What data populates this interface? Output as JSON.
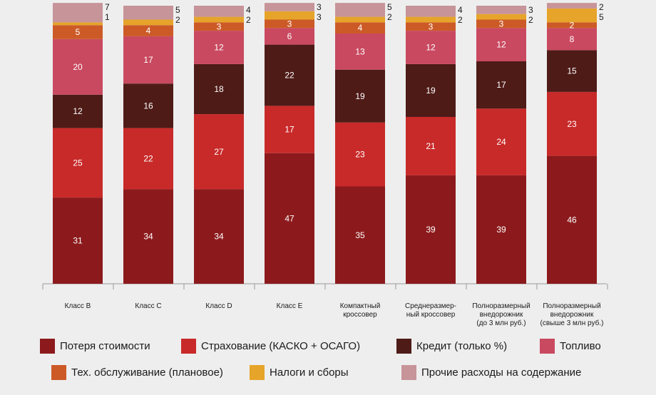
{
  "chart_data": {
    "type": "bar",
    "stacked": true,
    "categories": [
      [
        "Класс B"
      ],
      [
        "Класс C"
      ],
      [
        "Класс D"
      ],
      [
        "Класс E"
      ],
      [
        "Компактный",
        "кроссовер"
      ],
      [
        "Среднеразмер-",
        "ный кроссовер"
      ],
      [
        "Полноразмерный",
        "внедорожник",
        "(до 3 млн руб.)"
      ],
      [
        "Полноразмерный",
        "внедорожник",
        "(свыше 3 млн руб.)"
      ]
    ],
    "series": [
      {
        "name": "Потеря стоимости",
        "color": "#8c1a1c",
        "values": [
          31,
          34,
          34,
          47,
          35,
          39,
          39,
          46
        ]
      },
      {
        "name": "Страхование (КАСКО + ОСАГО)",
        "color": "#c82a29",
        "values": [
          25,
          22,
          27,
          17,
          23,
          21,
          24,
          23
        ]
      },
      {
        "name": "Кредит (только %)",
        "color": "#4e1b17",
        "values": [
          12,
          16,
          18,
          22,
          19,
          19,
          17,
          15
        ]
      },
      {
        "name": "Топливо",
        "color": "#c94960",
        "values": [
          20,
          17,
          12,
          6,
          13,
          12,
          12,
          8
        ]
      },
      {
        "name": "Тех. обслуживание (плановое)",
        "color": "#cc5a27",
        "values": [
          5,
          4,
          3,
          3,
          4,
          3,
          3,
          2
        ]
      },
      {
        "name": "Налоги и сборы",
        "color": "#e6a42a",
        "values": [
          1,
          2,
          2,
          3,
          2,
          2,
          2,
          5
        ]
      },
      {
        "name": "Прочие расходы на содержание",
        "color": "#c79499",
        "values": [
          7,
          5,
          4,
          3,
          5,
          4,
          3,
          2
        ]
      }
    ],
    "ylim": [
      0,
      100
    ],
    "legend_position": "bottom",
    "grid": false
  }
}
